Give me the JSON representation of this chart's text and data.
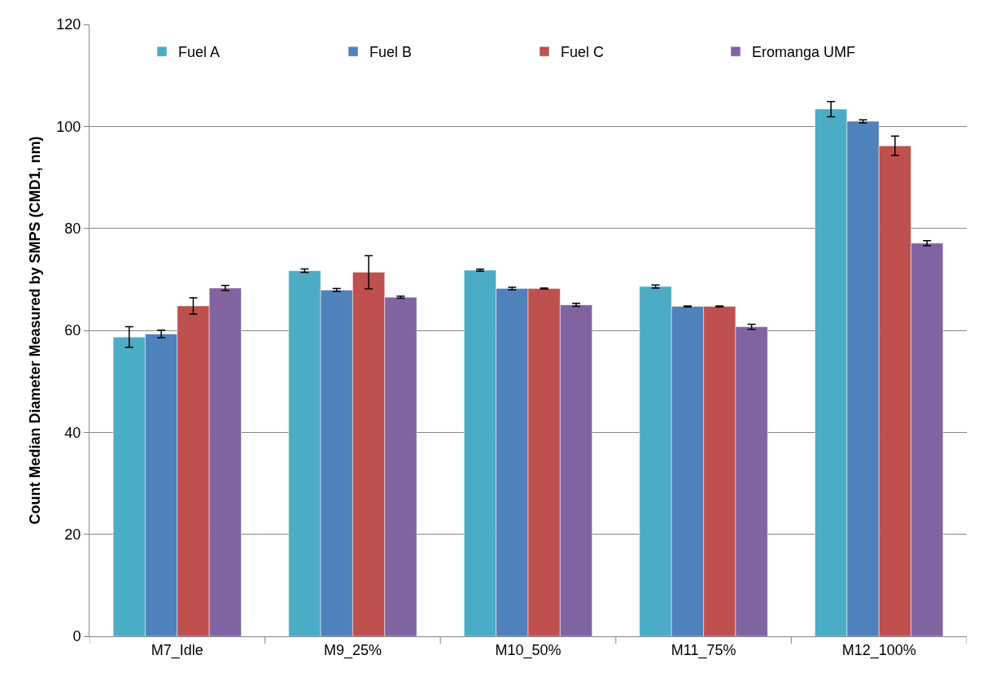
{
  "chart_data": {
    "type": "bar",
    "ylabel": "Count Median Diameter Measured by SMPS (CMD1, nm)",
    "categories": [
      "M7_Idle",
      "M9_25%",
      "M10_50%",
      "M11_75%",
      "M12_100%"
    ],
    "series": [
      {
        "name": "Fuel A",
        "color": "#4bacc6",
        "values": [
          58.7,
          71.7,
          71.8,
          68.6,
          103.4
        ],
        "errors": [
          2.0,
          0.35,
          0.2,
          0.3,
          1.5
        ]
      },
      {
        "name": "Fuel B",
        "color": "#4f81bd",
        "values": [
          59.3,
          67.9,
          68.2,
          64.7,
          101.0
        ],
        "errors": [
          0.75,
          0.3,
          0.25,
          0.1,
          0.3
        ]
      },
      {
        "name": "Fuel C",
        "color": "#c0504d",
        "values": [
          64.8,
          71.4,
          68.2,
          64.7,
          96.2
        ],
        "errors": [
          1.6,
          3.25,
          0.1,
          0.1,
          1.9
        ]
      },
      {
        "name": "Eromanga UMF",
        "color": "#8064a2",
        "values": [
          68.3,
          66.5,
          65.0,
          60.7,
          77.1
        ],
        "errors": [
          0.5,
          0.2,
          0.3,
          0.5,
          0.5
        ]
      }
    ],
    "ylim": [
      0,
      120
    ],
    "yticks": [
      0,
      20,
      40,
      60,
      80,
      100,
      120
    ],
    "grid": "y",
    "legend": "top"
  }
}
